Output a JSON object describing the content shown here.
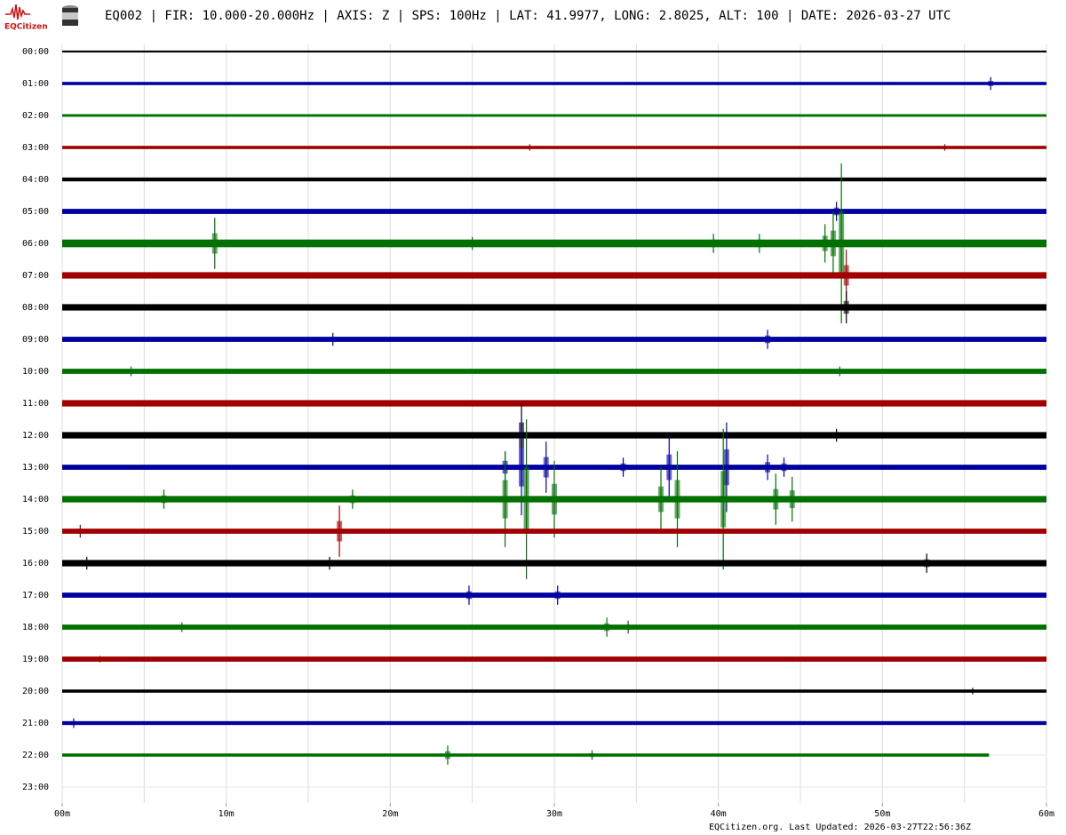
{
  "logo": "EQCitizen",
  "chart_data": {
    "type": "helicorder",
    "title": "EQ002 | FIR: 10.000-20.000Hz | AXIS: Z | SPS: 100Hz | LAT: 41.9977, LONG: 2.8025, ALT: 100 | DATE: 2026-03-27 UTC",
    "footer": "EQCitizen.org. Last Updated: 2026-03-27T22:56:36Z",
    "xlim": [
      0,
      60
    ],
    "xticks": [
      {
        "value": 0,
        "label": "00m"
      },
      {
        "value": 10,
        "label": "10m"
      },
      {
        "value": 20,
        "label": "20m"
      },
      {
        "value": 30,
        "label": "30m"
      },
      {
        "value": 40,
        "label": "40m"
      },
      {
        "value": 50,
        "label": "50m"
      },
      {
        "value": 60,
        "label": "60m"
      }
    ],
    "xgrid": [
      0,
      5,
      10,
      15,
      20,
      25,
      30,
      35,
      40,
      45,
      50,
      55,
      60
    ],
    "categories": [
      "00:00",
      "01:00",
      "02:00",
      "03:00",
      "04:00",
      "05:00",
      "06:00",
      "07:00",
      "08:00",
      "09:00",
      "10:00",
      "11:00",
      "12:00",
      "13:00",
      "14:00",
      "15:00",
      "16:00",
      "17:00",
      "18:00",
      "19:00",
      "20:00",
      "21:00",
      "22:00",
      "23:00"
    ],
    "rows": [
      {
        "color": "#000000",
        "end": 60,
        "noise": 0.03,
        "events": []
      },
      {
        "color": "#0000a0",
        "end": 60,
        "noise": 0.05,
        "events": [
          [
            56.6,
            0.2
          ]
        ]
      },
      {
        "color": "#007000",
        "end": 60,
        "noise": 0.04,
        "events": []
      },
      {
        "color": "#a00000",
        "end": 60,
        "noise": 0.05,
        "events": [
          [
            28.5,
            0.1
          ],
          [
            53.8,
            0.1
          ]
        ]
      },
      {
        "color": "#000000",
        "end": 60,
        "noise": 0.06,
        "events": []
      },
      {
        "color": "#0000a0",
        "end": 60,
        "noise": 0.08,
        "events": [
          [
            47.2,
            0.3
          ]
        ]
      },
      {
        "color": "#007000",
        "end": 60,
        "noise": 0.12,
        "events": [
          [
            9.3,
            0.8
          ],
          [
            25,
            0.2
          ],
          [
            39.7,
            0.3
          ],
          [
            42.5,
            0.3
          ],
          [
            46.5,
            0.6
          ],
          [
            47,
            1.0
          ],
          [
            47.5,
            2.5
          ]
        ]
      },
      {
        "color": "#a00000",
        "end": 60,
        "noise": 0.1,
        "events": [
          [
            47.8,
            0.8
          ]
        ]
      },
      {
        "color": "#000000",
        "end": 60,
        "noise": 0.1,
        "events": [
          [
            47.8,
            0.5
          ]
        ]
      },
      {
        "color": "#0000a0",
        "end": 60,
        "noise": 0.08,
        "events": [
          [
            16.5,
            0.2
          ],
          [
            43,
            0.3
          ]
        ]
      },
      {
        "color": "#007000",
        "end": 60,
        "noise": 0.08,
        "events": [
          [
            4.2,
            0.15
          ],
          [
            47.4,
            0.15
          ]
        ]
      },
      {
        "color": "#a00000",
        "end": 60,
        "noise": 0.1,
        "events": []
      },
      {
        "color": "#000000",
        "end": 60,
        "noise": 0.1,
        "events": [
          [
            28,
            1.0
          ],
          [
            47.2,
            0.2
          ]
        ]
      },
      {
        "color": "#0000a0",
        "end": 60,
        "noise": 0.08,
        "events": [
          [
            27,
            0.5
          ],
          [
            28,
            1.5
          ],
          [
            29.5,
            0.8
          ],
          [
            34.2,
            0.3
          ],
          [
            37,
            1.0
          ],
          [
            40.5,
            1.4
          ],
          [
            43,
            0.4
          ],
          [
            44,
            0.3
          ]
        ]
      },
      {
        "color": "#007000",
        "end": 60,
        "noise": 0.1,
        "events": [
          [
            6.2,
            0.3
          ],
          [
            17.7,
            0.3
          ],
          [
            27,
            1.5
          ],
          [
            28.3,
            2.5
          ],
          [
            30,
            1.2
          ],
          [
            36.5,
            1.0
          ],
          [
            37.5,
            1.5
          ],
          [
            40.3,
            2.2
          ],
          [
            43.5,
            0.8
          ],
          [
            44.5,
            0.7
          ]
        ]
      },
      {
        "color": "#a00000",
        "end": 60,
        "noise": 0.08,
        "events": [
          [
            1.1,
            0.2
          ],
          [
            16.9,
            0.8
          ]
        ]
      },
      {
        "color": "#000000",
        "end": 60,
        "noise": 0.1,
        "events": [
          [
            1.5,
            0.2
          ],
          [
            16.3,
            0.2
          ],
          [
            52.7,
            0.3
          ]
        ]
      },
      {
        "color": "#0000a0",
        "end": 60,
        "noise": 0.08,
        "events": [
          [
            24.8,
            0.3
          ],
          [
            30.2,
            0.3
          ]
        ]
      },
      {
        "color": "#007000",
        "end": 60,
        "noise": 0.08,
        "events": [
          [
            7.3,
            0.15
          ],
          [
            33.2,
            0.3
          ],
          [
            34.5,
            0.2
          ]
        ]
      },
      {
        "color": "#a00000",
        "end": 60,
        "noise": 0.08,
        "events": [
          [
            2.3,
            0.1
          ]
        ]
      },
      {
        "color": "#000000",
        "end": 60,
        "noise": 0.05,
        "events": [
          [
            55.5,
            0.1
          ]
        ]
      },
      {
        "color": "#0000a0",
        "end": 60,
        "noise": 0.06,
        "events": [
          [
            0.7,
            0.15
          ]
        ]
      },
      {
        "color": "#007000",
        "end": 56.5,
        "noise": 0.05,
        "events": [
          [
            23.5,
            0.3
          ],
          [
            32.3,
            0.15
          ]
        ]
      },
      {
        "color": "#000000",
        "end": null,
        "noise": null,
        "events": []
      }
    ]
  }
}
